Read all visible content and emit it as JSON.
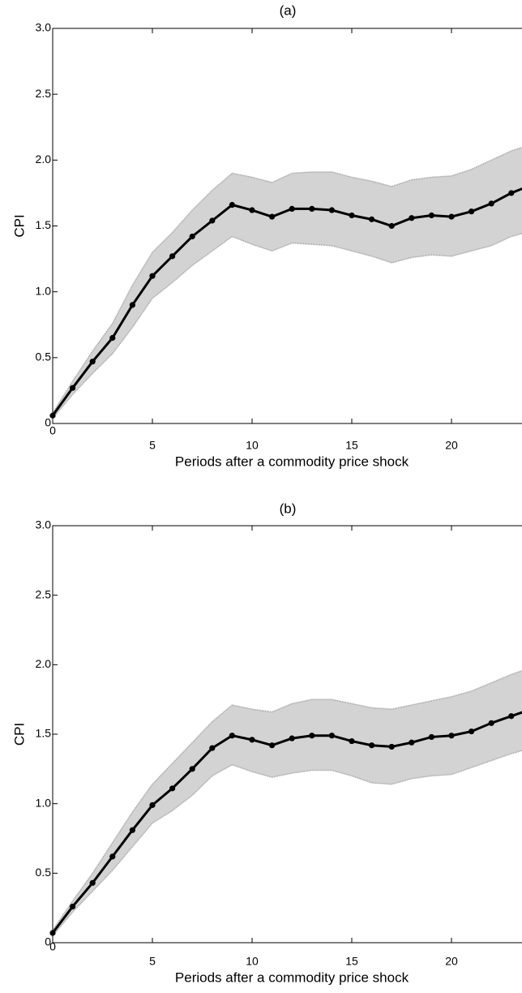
{
  "chart_data": [
    {
      "type": "line",
      "title": "(a)",
      "xlabel": "Periods after a commodity price shock",
      "ylabel": "CPI",
      "x": [
        0,
        1,
        2,
        3,
        4,
        5,
        6,
        7,
        8,
        9,
        10,
        11,
        12,
        13,
        14,
        15,
        16,
        17,
        18,
        19,
        20,
        21,
        22,
        23,
        24
      ],
      "values": [
        0.06,
        0.27,
        0.47,
        0.65,
        0.9,
        1.12,
        1.27,
        1.42,
        1.54,
        1.66,
        1.62,
        1.57,
        1.63,
        1.63,
        1.62,
        1.58,
        1.55,
        1.5,
        1.56,
        1.58,
        1.57,
        1.61,
        1.67,
        1.75,
        1.81
      ],
      "upper": [
        0.08,
        0.32,
        0.55,
        0.76,
        1.05,
        1.3,
        1.45,
        1.62,
        1.77,
        1.9,
        1.87,
        1.83,
        1.9,
        1.91,
        1.91,
        1.87,
        1.84,
        1.8,
        1.85,
        1.87,
        1.88,
        1.93,
        2.0,
        2.07,
        2.12
      ],
      "lower": [
        0.04,
        0.22,
        0.38,
        0.53,
        0.73,
        0.95,
        1.07,
        1.2,
        1.31,
        1.42,
        1.36,
        1.31,
        1.37,
        1.36,
        1.35,
        1.31,
        1.27,
        1.22,
        1.26,
        1.28,
        1.27,
        1.31,
        1.35,
        1.42,
        1.46
      ],
      "color": "#000000",
      "band_color": "#d3d3d3",
      "xlim": [
        0,
        25
      ],
      "xticks": [
        0,
        5,
        10,
        15,
        20
      ],
      "ylim": [
        0,
        3
      ],
      "yticks": [
        0,
        0.5,
        {
          "value": 1,
          "label": "1.0"
        },
        1.5,
        {
          "value": 2,
          "label": "2.0"
        },
        2.5,
        {
          "value": 3,
          "label": "3.0"
        }
      ]
    },
    {
      "type": "line",
      "title": "(b)",
      "xlabel": "Periods after a commodity price shock",
      "ylabel": "CPI",
      "x": [
        0,
        1,
        2,
        3,
        4,
        5,
        6,
        7,
        8,
        9,
        10,
        11,
        12,
        13,
        14,
        15,
        16,
        17,
        18,
        19,
        20,
        21,
        22,
        23,
        24
      ],
      "values": [
        0.07,
        0.26,
        0.43,
        0.62,
        0.81,
        0.99,
        1.11,
        1.25,
        1.4,
        1.49,
        1.46,
        1.42,
        1.47,
        1.49,
        1.49,
        1.45,
        1.42,
        1.41,
        1.44,
        1.48,
        1.49,
        1.52,
        1.58,
        1.63,
        1.68
      ],
      "upper": [
        0.09,
        0.3,
        0.5,
        0.72,
        0.94,
        1.14,
        1.29,
        1.44,
        1.59,
        1.71,
        1.68,
        1.66,
        1.72,
        1.75,
        1.75,
        1.72,
        1.69,
        1.68,
        1.71,
        1.74,
        1.77,
        1.81,
        1.87,
        1.93,
        1.98
      ],
      "lower": [
        0.05,
        0.22,
        0.37,
        0.52,
        0.69,
        0.86,
        0.95,
        1.06,
        1.2,
        1.28,
        1.23,
        1.19,
        1.22,
        1.24,
        1.24,
        1.2,
        1.15,
        1.14,
        1.18,
        1.2,
        1.21,
        1.26,
        1.31,
        1.36,
        1.4
      ],
      "color": "#000000",
      "band_color": "#d3d3d3",
      "xlim": [
        0,
        25
      ],
      "xticks": [
        0,
        5,
        10,
        15,
        20
      ],
      "ylim": [
        0,
        3
      ],
      "yticks": [
        0,
        0.5,
        {
          "value": 1,
          "label": "1.0"
        },
        1.5,
        {
          "value": 2,
          "label": "2.0"
        },
        2.5,
        {
          "value": 3,
          "label": "3.0"
        }
      ]
    }
  ]
}
